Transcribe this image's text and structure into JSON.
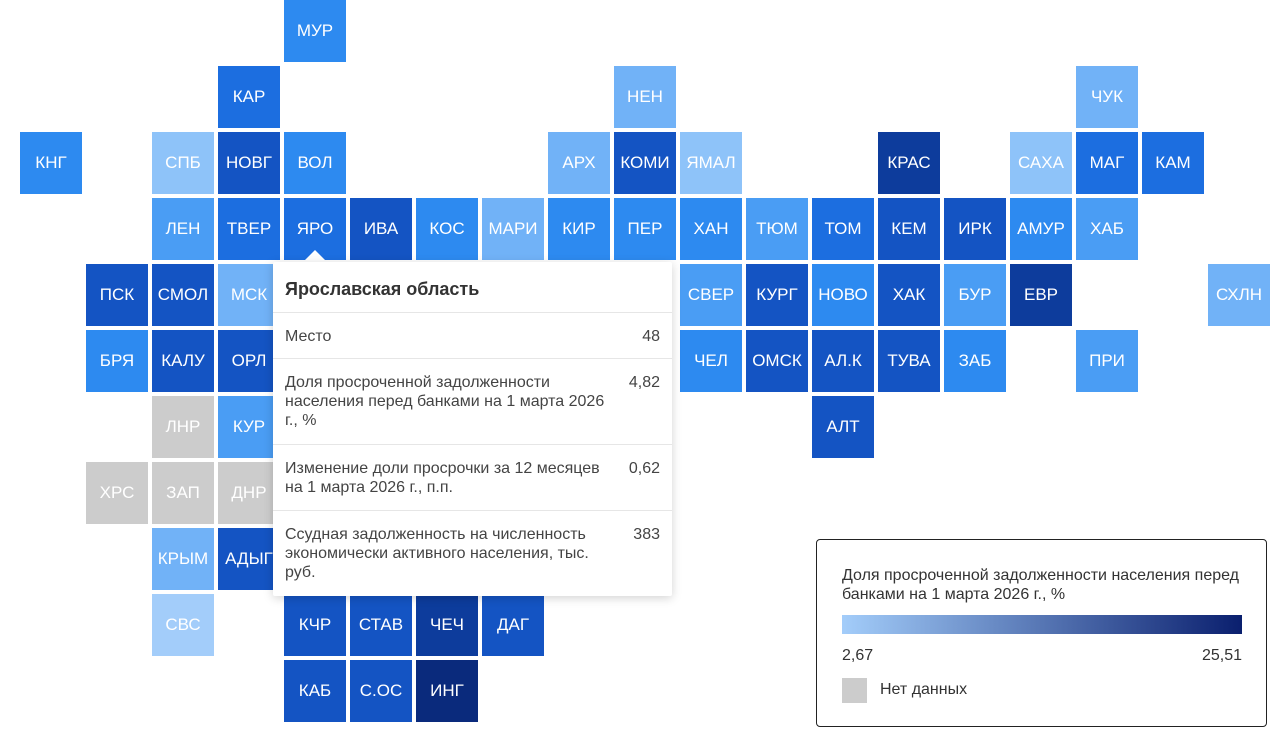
{
  "tiles": [
    {
      "label": "МУР",
      "col": 4,
      "row": 0,
      "color": "#2d8af0"
    },
    {
      "label": "КАР",
      "col": 3,
      "row": 1,
      "color": "#1c6ee0"
    },
    {
      "label": "НЕН",
      "col": 9,
      "row": 1,
      "color": "#71b2f7"
    },
    {
      "label": "ЧУК",
      "col": 16,
      "row": 1,
      "color": "#71b2f7"
    },
    {
      "label": "КНГ",
      "col": 0,
      "row": 2,
      "color": "#2d8af0"
    },
    {
      "label": "СПБ",
      "col": 2,
      "row": 2,
      "color": "#8ec3f9"
    },
    {
      "label": "НОВГ",
      "col": 3,
      "row": 2,
      "color": "#1454c3"
    },
    {
      "label": "ВОЛ",
      "col": 4,
      "row": 2,
      "color": "#2d8af0"
    },
    {
      "label": "АРХ",
      "col": 8,
      "row": 2,
      "color": "#71b2f7"
    },
    {
      "label": "КОМИ",
      "col": 9,
      "row": 2,
      "color": "#1454c3"
    },
    {
      "label": "ЯМАЛ",
      "col": 10,
      "row": 2,
      "color": "#8ec3f9"
    },
    {
      "label": "КРАС",
      "col": 13,
      "row": 2,
      "color": "#0d3c9c"
    },
    {
      "label": "САХА",
      "col": 15,
      "row": 2,
      "color": "#8ec3f9"
    },
    {
      "label": "МАГ",
      "col": 16,
      "row": 2,
      "color": "#1c6ee0"
    },
    {
      "label": "КАМ",
      "col": 17,
      "row": 2,
      "color": "#1c6ee0"
    },
    {
      "label": "ЛЕН",
      "col": 2,
      "row": 3,
      "color": "#4a9df4"
    },
    {
      "label": "ТВЕР",
      "col": 3,
      "row": 3,
      "color": "#1c6ee0"
    },
    {
      "label": "ЯРО",
      "col": 4,
      "row": 3,
      "color": "#1c6ee0",
      "selected": true
    },
    {
      "label": "ИВА",
      "col": 5,
      "row": 3,
      "color": "#1454c3"
    },
    {
      "label": "КОС",
      "col": 6,
      "row": 3,
      "color": "#2d8af0"
    },
    {
      "label": "МАРИ",
      "col": 7,
      "row": 3,
      "color": "#71b2f7"
    },
    {
      "label": "КИР",
      "col": 8,
      "row": 3,
      "color": "#2d8af0"
    },
    {
      "label": "ПЕР",
      "col": 9,
      "row": 3,
      "color": "#2d8af0"
    },
    {
      "label": "ХАН",
      "col": 10,
      "row": 3,
      "color": "#2d8af0"
    },
    {
      "label": "ТЮМ",
      "col": 11,
      "row": 3,
      "color": "#4a9df4"
    },
    {
      "label": "ТОМ",
      "col": 12,
      "row": 3,
      "color": "#1c6ee0"
    },
    {
      "label": "КЕМ",
      "col": 13,
      "row": 3,
      "color": "#1454c3"
    },
    {
      "label": "ИРК",
      "col": 14,
      "row": 3,
      "color": "#1454c3"
    },
    {
      "label": "АМУР",
      "col": 15,
      "row": 3,
      "color": "#2d8af0"
    },
    {
      "label": "ХАБ",
      "col": 16,
      "row": 3,
      "color": "#4a9df4"
    },
    {
      "label": "ПСК",
      "col": 1,
      "row": 4,
      "color": "#1454c3"
    },
    {
      "label": "СМОЛ",
      "col": 2,
      "row": 4,
      "color": "#1454c3"
    },
    {
      "label": "МСК",
      "col": 3,
      "row": 4,
      "color": "#71b2f7"
    },
    {
      "label": "СВЕР",
      "col": 10,
      "row": 4,
      "color": "#4a9df4"
    },
    {
      "label": "КУРГ",
      "col": 11,
      "row": 4,
      "color": "#1454c3"
    },
    {
      "label": "НОВО",
      "col": 12,
      "row": 4,
      "color": "#2d8af0"
    },
    {
      "label": "ХАК",
      "col": 13,
      "row": 4,
      "color": "#1454c3"
    },
    {
      "label": "БУР",
      "col": 14,
      "row": 4,
      "color": "#4a9df4"
    },
    {
      "label": "ЕВР",
      "col": 15,
      "row": 4,
      "color": "#0d3c9c"
    },
    {
      "label": "СХЛН",
      "col": 18,
      "row": 4,
      "color": "#71b2f7"
    },
    {
      "label": "БРЯ",
      "col": 1,
      "row": 5,
      "color": "#2d8af0"
    },
    {
      "label": "КАЛУ",
      "col": 2,
      "row": 5,
      "color": "#1454c3"
    },
    {
      "label": "ОРЛ",
      "col": 3,
      "row": 5,
      "color": "#1454c3"
    },
    {
      "label": "ЧЕЛ",
      "col": 10,
      "row": 5,
      "color": "#2d8af0"
    },
    {
      "label": "ОМСК",
      "col": 11,
      "row": 5,
      "color": "#1454c3"
    },
    {
      "label": "АЛ.К",
      "col": 12,
      "row": 5,
      "color": "#1454c3"
    },
    {
      "label": "ТУВА",
      "col": 13,
      "row": 5,
      "color": "#1454c3"
    },
    {
      "label": "ЗАБ",
      "col": 14,
      "row": 5,
      "color": "#2d8af0"
    },
    {
      "label": "ПРИ",
      "col": 16,
      "row": 5,
      "color": "#4a9df4"
    },
    {
      "label": "ЛНР",
      "col": 2,
      "row": 6,
      "color": "#cccccc"
    },
    {
      "label": "КУР",
      "col": 3,
      "row": 6,
      "color": "#4a9df4"
    },
    {
      "label": "АЛТ",
      "col": 12,
      "row": 6,
      "color": "#1454c3"
    },
    {
      "label": "ХРС",
      "col": 1,
      "row": 7,
      "color": "#cccccc"
    },
    {
      "label": "ЗАП",
      "col": 2,
      "row": 7,
      "color": "#cccccc"
    },
    {
      "label": "ДНР",
      "col": 3,
      "row": 7,
      "color": "#cccccc"
    },
    {
      "label": "КРЫМ",
      "col": 2,
      "row": 8,
      "color": "#71b2f7"
    },
    {
      "label": "АДЫГ",
      "col": 3,
      "row": 8,
      "color": "#1454c3"
    },
    {
      "label": "СВС",
      "col": 2,
      "row": 9,
      "color": "#a3cdfa"
    },
    {
      "label": "КЧР",
      "col": 4,
      "row": 9,
      "color": "#1454c3"
    },
    {
      "label": "СТАВ",
      "col": 5,
      "row": 9,
      "color": "#1454c3"
    },
    {
      "label": "ЧЕЧ",
      "col": 6,
      "row": 9,
      "color": "#0d3c9c"
    },
    {
      "label": "ДАГ",
      "col": 7,
      "row": 9,
      "color": "#1454c3"
    },
    {
      "label": "КАБ",
      "col": 4,
      "row": 10,
      "color": "#1454c3"
    },
    {
      "label": "С.ОС",
      "col": 5,
      "row": 10,
      "color": "#1454c3"
    },
    {
      "label": "ИНГ",
      "col": 6,
      "row": 10,
      "color": "#0a2a7c"
    }
  ],
  "tooltip": {
    "title": "Ярославская область",
    "rows": [
      {
        "label": "Место",
        "value": "48"
      },
      {
        "label": "Доля просроченной задолженности населения перед банками на 1 марта 2026 г., %",
        "value": "4,82"
      },
      {
        "label": "Изменение доли просрочки за 12 месяцев на 1 марта 2026 г., п.п.",
        "value": "0,62"
      },
      {
        "label": "Ссудная задолженность на численность экономически активного населения, тыс. руб.",
        "value": "383"
      }
    ]
  },
  "legend": {
    "title": "Доля просроченной задолженности населения перед банками на 1 марта 2026 г., %",
    "min": "2,67",
    "max": "25,51",
    "min_color": "#a3cdfa",
    "max_color": "#0a1f6e",
    "nodata_label": "Нет данных",
    "nodata_color": "#cccccc"
  }
}
